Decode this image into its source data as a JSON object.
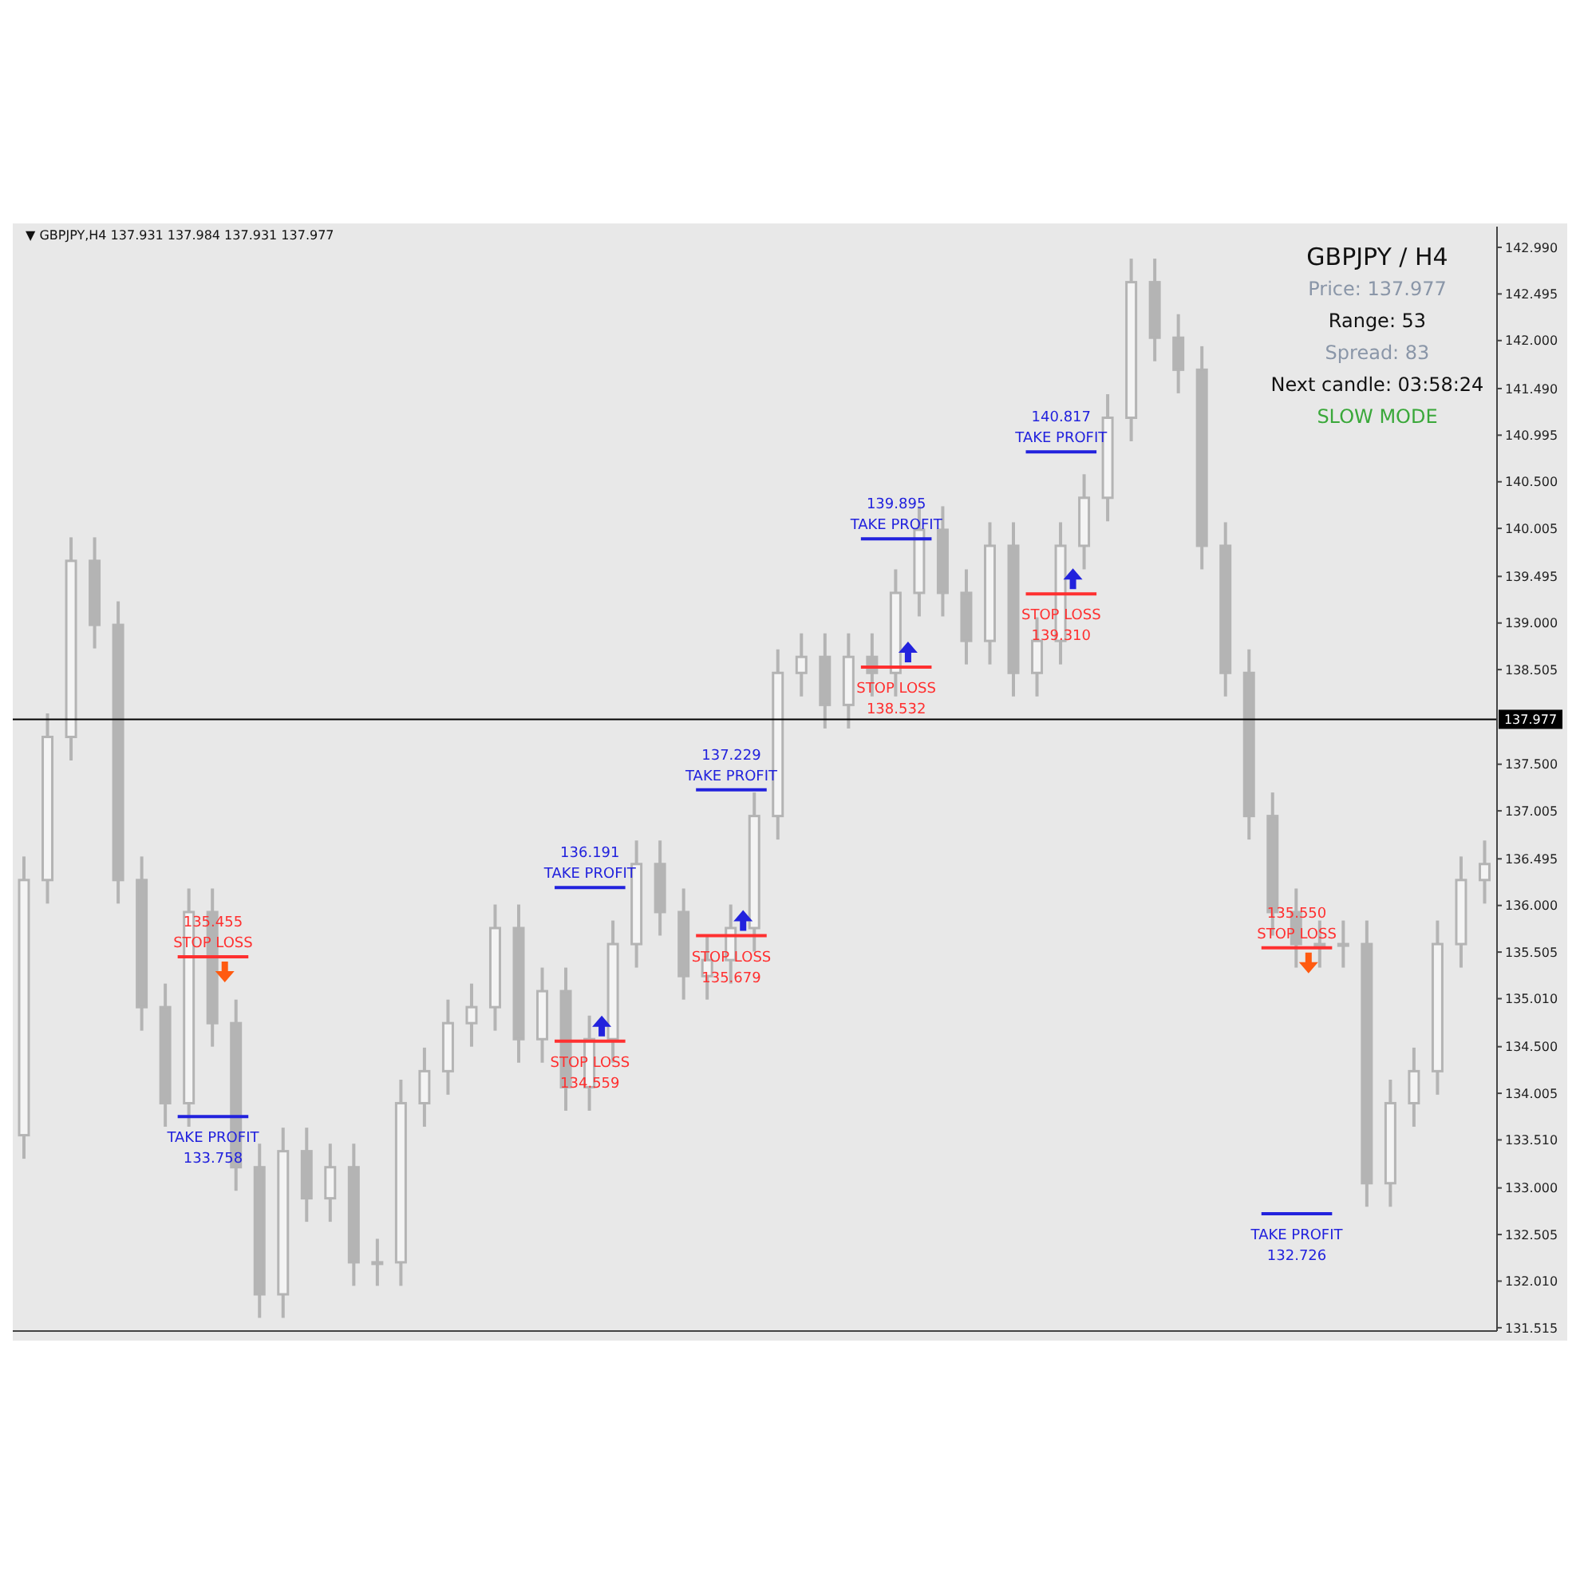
{
  "chart_data": {
    "type": "candlestick",
    "title": "GBPJPY  /  H4",
    "subtitle": "▼ GBPJPY,H4  137.931 137.984 137.931 137.977",
    "color": "#b4b4b4",
    "tick_labels": "y",
    "categories": [
      null,
      null,
      null,
      null,
      null,
      null,
      null,
      null,
      null,
      null,
      null,
      null,
      null,
      null,
      null,
      null,
      null,
      null,
      null,
      null,
      null,
      null,
      null,
      null,
      null,
      null,
      null,
      null,
      null,
      null,
      null,
      null,
      null,
      null,
      null,
      null,
      null,
      null,
      null,
      null,
      null,
      null,
      null,
      null,
      null,
      null,
      null,
      null,
      null,
      null,
      null,
      null,
      null,
      null,
      null,
      null,
      null,
      null,
      null,
      null,
      null,
      null,
      null
    ],
    "ohlc": [
      [
        133.56,
        136.52,
        133.31,
        136.27
      ],
      [
        136.27,
        138.04,
        136.02,
        137.79
      ],
      [
        137.79,
        139.91,
        137.54,
        139.66
      ],
      [
        139.66,
        139.91,
        138.73,
        138.98
      ],
      [
        138.98,
        139.23,
        136.02,
        136.27
      ],
      [
        136.27,
        136.52,
        134.67,
        134.92
      ],
      [
        134.92,
        135.17,
        133.65,
        133.9
      ],
      [
        133.9,
        136.18,
        133.65,
        135.93
      ],
      [
        135.93,
        136.18,
        134.5,
        134.75
      ],
      [
        134.75,
        135.0,
        132.97,
        133.22
      ],
      [
        133.22,
        133.47,
        131.62,
        131.87
      ],
      [
        131.87,
        133.64,
        131.62,
        133.39
      ],
      [
        133.39,
        133.64,
        132.64,
        132.89
      ],
      [
        132.89,
        133.47,
        132.64,
        133.22
      ],
      [
        133.22,
        133.47,
        131.96,
        132.21
      ],
      [
        132.21,
        132.46,
        131.96,
        132.21
      ],
      [
        132.21,
        134.15,
        131.96,
        133.9
      ],
      [
        133.9,
        134.49,
        133.65,
        134.24
      ],
      [
        134.24,
        135.0,
        133.99,
        134.75
      ],
      [
        134.75,
        135.17,
        134.5,
        134.92
      ],
      [
        134.92,
        136.01,
        134.67,
        135.76
      ],
      [
        135.76,
        136.01,
        134.33,
        134.58
      ],
      [
        134.58,
        135.34,
        134.33,
        135.09
      ],
      [
        135.09,
        135.34,
        133.82,
        134.07
      ],
      [
        134.07,
        134.83,
        133.82,
        134.58
      ],
      [
        134.58,
        135.84,
        134.33,
        135.59
      ],
      [
        135.59,
        136.69,
        135.34,
        136.44
      ],
      [
        136.44,
        136.69,
        135.68,
        135.93
      ],
      [
        135.93,
        136.18,
        135.0,
        135.25
      ],
      [
        135.25,
        135.67,
        135.0,
        135.42
      ],
      [
        135.42,
        136.01,
        135.17,
        135.76
      ],
      [
        135.76,
        137.2,
        135.51,
        136.95
      ],
      [
        136.95,
        138.72,
        136.7,
        138.47
      ],
      [
        138.47,
        138.89,
        138.22,
        138.64
      ],
      [
        138.64,
        138.89,
        137.88,
        138.13
      ],
      [
        138.13,
        138.89,
        137.88,
        138.64
      ],
      [
        138.64,
        138.89,
        138.22,
        138.47
      ],
      [
        138.47,
        139.57,
        138.22,
        139.32
      ],
      [
        139.32,
        140.24,
        139.07,
        139.99
      ],
      [
        139.99,
        140.24,
        139.07,
        139.32
      ],
      [
        139.32,
        139.57,
        138.56,
        138.81
      ],
      [
        138.81,
        140.07,
        138.56,
        139.82
      ],
      [
        139.82,
        140.07,
        138.22,
        138.47
      ],
      [
        138.47,
        139.06,
        138.22,
        138.81
      ],
      [
        138.81,
        140.07,
        138.56,
        139.82
      ],
      [
        139.82,
        140.58,
        139.57,
        140.33
      ],
      [
        140.33,
        141.43,
        140.08,
        141.18
      ],
      [
        141.18,
        142.87,
        140.93,
        142.62
      ],
      [
        142.62,
        142.87,
        141.78,
        142.03
      ],
      [
        142.03,
        142.28,
        141.44,
        141.69
      ],
      [
        141.69,
        141.94,
        139.57,
        139.82
      ],
      [
        139.82,
        140.07,
        138.22,
        138.47
      ],
      [
        138.47,
        138.72,
        136.7,
        136.95
      ],
      [
        136.95,
        137.2,
        135.68,
        135.93
      ],
      [
        135.93,
        136.18,
        135.34,
        135.59
      ],
      [
        135.59,
        135.84,
        135.34,
        135.59
      ],
      [
        135.59,
        135.84,
        135.34,
        135.59
      ],
      [
        135.59,
        135.84,
        132.8,
        133.05
      ],
      [
        133.05,
        134.15,
        132.8,
        133.9
      ],
      [
        133.9,
        134.49,
        133.65,
        134.24
      ],
      [
        134.24,
        135.84,
        133.99,
        135.59
      ],
      [
        135.59,
        136.52,
        135.34,
        136.27
      ],
      [
        136.27,
        136.69,
        136.02,
        136.44
      ]
    ],
    "ylim": [
      131.48,
      143.21
    ],
    "yticks": [
      {
        "value": 142.99,
        "label": "142.990"
      },
      {
        "value": 142.495,
        "label": "142.495"
      },
      {
        "value": 142,
        "label": "142.000"
      },
      {
        "value": 141.49,
        "label": "141.490"
      },
      {
        "value": 140.995,
        "label": "140.995"
      },
      {
        "value": 140.5,
        "label": "140.500"
      },
      {
        "value": 140.005,
        "label": "140.005"
      },
      {
        "value": 139.495,
        "label": "139.495"
      },
      {
        "value": 139,
        "label": "139.000"
      },
      {
        "value": 138.505,
        "label": "138.505"
      },
      {
        "value": 137.5,
        "label": "137.500"
      },
      {
        "value": 137.005,
        "label": "137.005"
      },
      {
        "value": 136.495,
        "label": "136.495"
      },
      {
        "value": 136,
        "label": "136.000"
      },
      {
        "value": 135.505,
        "label": "135.505"
      },
      {
        "value": 135.01,
        "label": "135.010"
      },
      {
        "value": 134.5,
        "label": "134.500"
      },
      {
        "value": 134.005,
        "label": "134.005"
      },
      {
        "value": 133.51,
        "label": "133.510"
      },
      {
        "value": 133,
        "label": "133.000"
      },
      {
        "value": 132.505,
        "label": "132.505"
      },
      {
        "value": 132.01,
        "label": "132.010"
      },
      {
        "value": 131.515,
        "label": "131.515"
      }
    ],
    "ref_lines": [
      {
        "axis": "y",
        "value": 135.455,
        "label": "135.455\nSTOP LOSS",
        "color": "#ff3030"
      },
      {
        "axis": "y",
        "value": 133.758,
        "label": "TAKE PROFIT\n133.758",
        "color": "#2222dd"
      },
      {
        "axis": "y",
        "value": 134.559,
        "label": "STOP LOSS\n134.559",
        "color": "#ff3030"
      },
      {
        "axis": "y",
        "value": 136.191,
        "label": "136.191\nTAKE PROFIT",
        "color": "#2222dd"
      },
      {
        "axis": "y",
        "value": 135.679,
        "label": "STOP LOSS\n135.679",
        "color": "#ff3030"
      },
      {
        "axis": "y",
        "value": 137.229,
        "label": "137.229\nTAKE PROFIT",
        "color": "#2222dd"
      },
      {
        "axis": "y",
        "value": 138.532,
        "label": "STOP LOSS\n138.532",
        "color": "#ff3030"
      },
      {
        "axis": "y",
        "value": 139.895,
        "label": "139.895\nTAKE PROFIT",
        "color": "#2222dd"
      },
      {
        "axis": "y",
        "value": 139.31,
        "label": "STOP LOSS\n139.310",
        "color": "#ff3030"
      },
      {
        "axis": "y",
        "value": 140.817,
        "label": "140.817\nTAKE PROFIT",
        "color": "#2222dd"
      },
      {
        "axis": "y",
        "value": 135.55,
        "label": "135.550\nSTOP LOSS",
        "color": "#ff3030"
      },
      {
        "axis": "y",
        "value": 132.726,
        "label": "TAKE PROFIT\n132.726",
        "color": "#2222dd"
      },
      {
        "axis": "y",
        "value": 137.977,
        "label": "137.977",
        "color": "#000000"
      }
    ],
    "annotations": [
      "Price: 137.977",
      "Range: 53",
      "Spread: 83",
      "Next candle: 03:58:24",
      "SLOW MODE"
    ]
  }
}
